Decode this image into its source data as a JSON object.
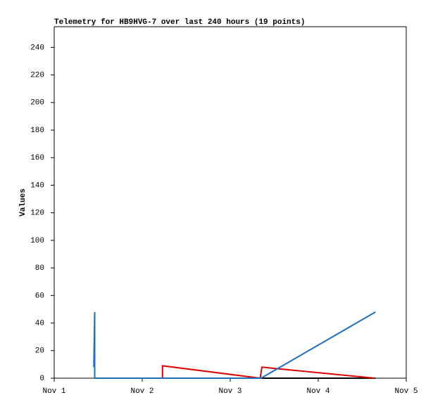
{
  "chart_data": {
    "type": "line",
    "title": "Telemetry for HB9HVG-7 over last 240 hours (19 points)",
    "y_label": "Values",
    "xlim": [
      1,
      5
    ],
    "xticks": [
      {
        "value": 1,
        "label": "Nov 1"
      },
      {
        "value": 2,
        "label": "Nov 2"
      },
      {
        "value": 3,
        "label": "Nov 3"
      },
      {
        "value": 4,
        "label": "Nov 4"
      },
      {
        "value": 5,
        "label": "Nov 5"
      }
    ],
    "ylim": [
      0,
      255
    ],
    "yticks": [
      0,
      20,
      40,
      60,
      80,
      100,
      120,
      140,
      160,
      180,
      200,
      220,
      240
    ],
    "grid": false,
    "series": [
      {
        "color": "#000000",
        "x": [
          1.46,
          4.65
        ],
        "values": [
          0,
          0
        ]
      },
      {
        "color": "#e00000",
        "x": [
          1.46,
          2.23,
          2.23,
          3.34,
          3.36,
          4.64
        ],
        "values": [
          0,
          0,
          9,
          0,
          8,
          0
        ]
      },
      {
        "color": "#1f6fbf",
        "x": [
          1.45,
          1.46,
          1.46,
          3.35,
          4.65
        ],
        "values": [
          8,
          48,
          0,
          0,
          48
        ]
      }
    ]
  }
}
